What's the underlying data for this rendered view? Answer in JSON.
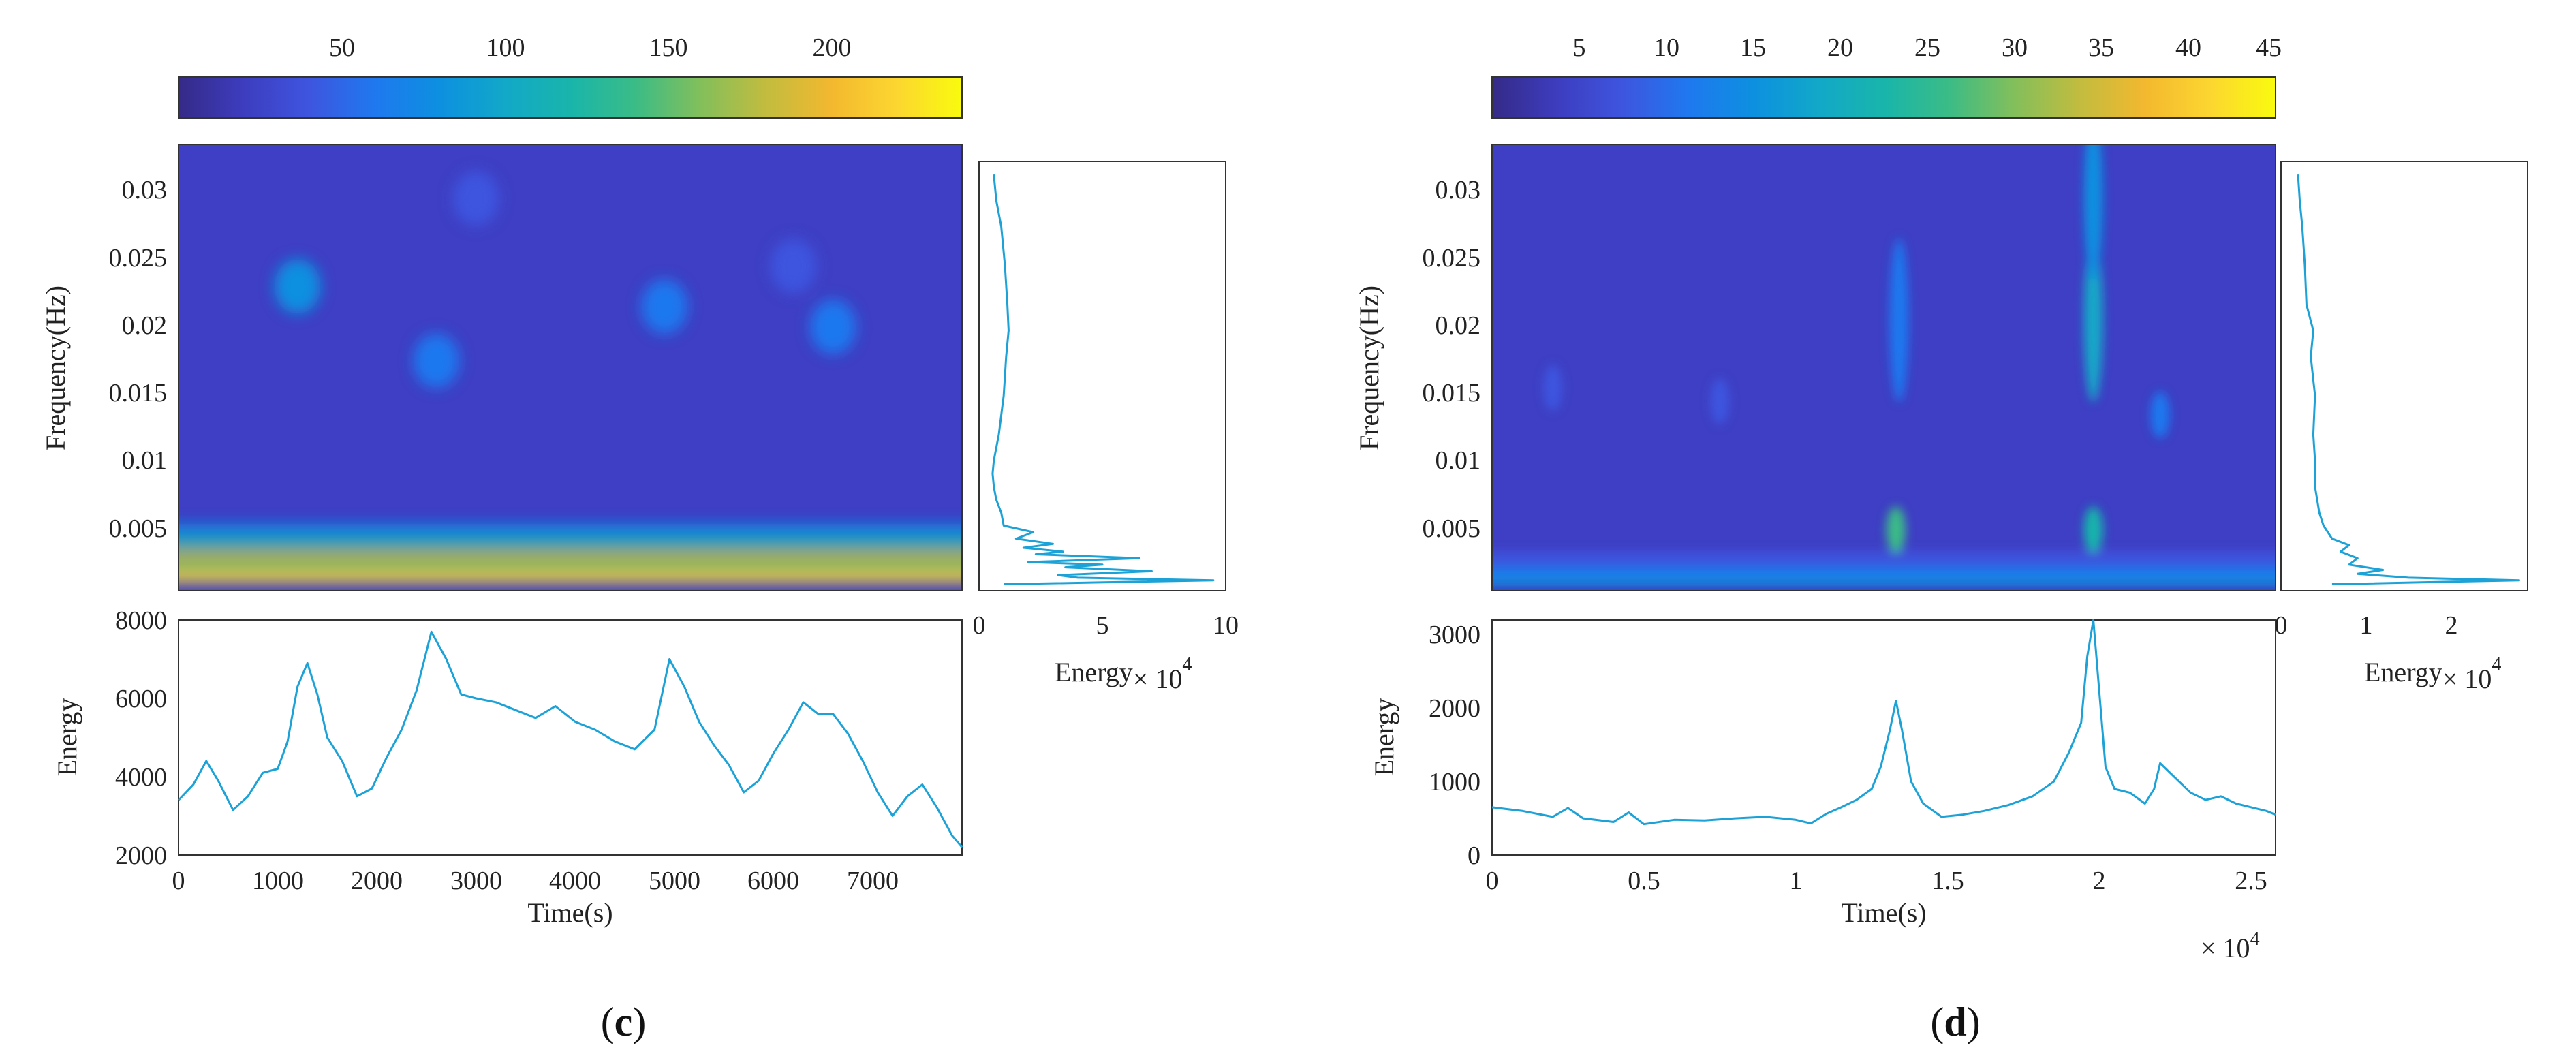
{
  "colors": {
    "parula": [
      "#352a87",
      "#3d3dbf",
      "#3e55df",
      "#1f78ef",
      "#0d90e0",
      "#12a8c8",
      "#19b5ab",
      "#3bbc86",
      "#83bf5b",
      "#c2bc3f",
      "#f3b82f",
      "#fcd630",
      "#f9fb0e"
    ],
    "trace": "#1ca2d6",
    "background_low": "#3e3fc4"
  },
  "chart_data": [
    {
      "id": "c",
      "type": "heatmap",
      "caption": "(c)",
      "caption_letter": "c",
      "colorbar": {
        "ticks": [
          "50",
          "100",
          "150",
          "200"
        ],
        "tick_values": [
          50,
          100,
          150,
          200
        ],
        "range": [
          0,
          240
        ]
      },
      "heatmap": {
        "ylabel": "Frequency(Hz)",
        "yticks": [
          "0.005",
          "0.01",
          "0.015",
          "0.02",
          "0.025",
          "0.03"
        ],
        "ytick_values": [
          0.005,
          0.01,
          0.015,
          0.02,
          0.025,
          0.03
        ],
        "ylim": [
          0,
          0.033
        ],
        "xlim": [
          0,
          7900
        ],
        "bands": [
          {
            "f": 0.001,
            "v": 220
          },
          {
            "f": 0.0025,
            "v": 180
          },
          {
            "f": 0.0018,
            "v": 150
          },
          {
            "f": 0.0035,
            "v": 110
          },
          {
            "f": 0.0045,
            "v": 80
          }
        ],
        "blobs": [
          {
            "t": 1200,
            "f": 0.0225,
            "v": 80
          },
          {
            "t": 2600,
            "f": 0.017,
            "v": 60
          },
          {
            "t": 4900,
            "f": 0.021,
            "v": 55
          },
          {
            "t": 6600,
            "f": 0.0195,
            "v": 60
          },
          {
            "t": 3000,
            "f": 0.029,
            "v": 45
          },
          {
            "t": 6200,
            "f": 0.024,
            "v": 45
          }
        ]
      },
      "side": {
        "xlabel": "Energy",
        "exponent": "× 10",
        "exponent_power": "4",
        "xticks": [
          "0",
          "5",
          "10"
        ],
        "xtick_values": [
          0,
          5,
          10
        ],
        "xlim": [
          0,
          10
        ],
        "f": [
          0.0005,
          0.0008,
          0.001,
          0.0012,
          0.0015,
          0.0018,
          0.002,
          0.0022,
          0.0025,
          0.0028,
          0.003,
          0.0033,
          0.0036,
          0.004,
          0.0045,
          0.005,
          0.006,
          0.007,
          0.008,
          0.009,
          0.01,
          0.012,
          0.015,
          0.018,
          0.02,
          0.022,
          0.025,
          0.028,
          0.03,
          0.032
        ],
        "e": [
          1.0,
          9.5,
          4.0,
          3.2,
          7.0,
          3.5,
          5.0,
          2.0,
          6.5,
          2.3,
          3.4,
          1.8,
          3.0,
          1.5,
          2.2,
          1.0,
          0.9,
          0.7,
          0.6,
          0.55,
          0.6,
          0.8,
          1.0,
          1.1,
          1.2,
          1.15,
          1.05,
          0.9,
          0.7,
          0.6
        ]
      },
      "line": {
        "ylabel": "Energy",
        "xlabel": "Time(s)",
        "yticks": [
          "2000",
          "4000",
          "6000",
          "8000"
        ],
        "ytick_values": [
          2000,
          4000,
          6000,
          8000
        ],
        "ylim": [
          2000,
          8000
        ],
        "xticks": [
          "0",
          "1000",
          "2000",
          "3000",
          "4000",
          "5000",
          "6000",
          "7000"
        ],
        "xtick_values": [
          0,
          1000,
          2000,
          3000,
          4000,
          5000,
          6000,
          7000
        ],
        "xlim": [
          0,
          7900
        ],
        "x": [
          0,
          150,
          280,
          400,
          550,
          700,
          850,
          1000,
          1100,
          1200,
          1300,
          1400,
          1500,
          1650,
          1800,
          1950,
          2100,
          2250,
          2400,
          2550,
          2700,
          2850,
          3000,
          3200,
          3400,
          3600,
          3800,
          4000,
          4200,
          4400,
          4600,
          4800,
          4950,
          5100,
          5250,
          5400,
          5550,
          5700,
          5850,
          6000,
          6150,
          6300,
          6450,
          6600,
          6750,
          6900,
          7050,
          7200,
          7350,
          7500,
          7650,
          7800,
          7900
        ],
        "y": [
          3400,
          3800,
          4400,
          3900,
          3150,
          3500,
          4100,
          4200,
          4900,
          6300,
          6900,
          6100,
          5000,
          4400,
          3500,
          3700,
          4500,
          5200,
          6200,
          7700,
          7000,
          6100,
          6000,
          5900,
          5700,
          5500,
          5800,
          5400,
          5200,
          4900,
          4700,
          5200,
          7000,
          6300,
          5400,
          4800,
          4300,
          3600,
          3900,
          4600,
          5200,
          5900,
          5600,
          5600,
          5100,
          4400,
          3600,
          3000,
          3500,
          3800,
          3200,
          2500,
          2200
        ]
      }
    },
    {
      "id": "d",
      "type": "heatmap",
      "caption": "(d)",
      "caption_letter": "d",
      "colorbar": {
        "ticks": [
          "5",
          "10",
          "15",
          "20",
          "25",
          "30",
          "35",
          "40",
          "45"
        ],
        "tick_values": [
          5,
          10,
          15,
          20,
          25,
          30,
          35,
          40,
          45
        ],
        "range": [
          0,
          45
        ]
      },
      "heatmap": {
        "ylabel": "Frequency(Hz)",
        "yticks": [
          "0.005",
          "0.01",
          "0.015",
          "0.02",
          "0.025",
          "0.03"
        ],
        "ytick_values": [
          0.005,
          0.01,
          0.015,
          0.02,
          0.025,
          0.03
        ],
        "ylim": [
          0,
          0.033
        ],
        "xlim": [
          0,
          25800
        ],
        "bands": [
          {
            "f": 0.0008,
            "v": 14
          },
          {
            "f": 0.0015,
            "v": 10
          },
          {
            "f": 0.0025,
            "v": 8
          }
        ],
        "blobs": [
          {
            "t": 13300,
            "f": 0.0045,
            "v": 25
          },
          {
            "t": 19800,
            "f": 0.0045,
            "v": 22
          },
          {
            "t": 13400,
            "f": 0.02,
            "v": 12
          },
          {
            "t": 19800,
            "f": 0.02,
            "v": 18
          },
          {
            "t": 19800,
            "f": 0.029,
            "v": 14
          },
          {
            "t": 22000,
            "f": 0.013,
            "v": 10
          },
          {
            "t": 2000,
            "f": 0.015,
            "v": 8
          },
          {
            "t": 7500,
            "f": 0.014,
            "v": 8
          }
        ]
      },
      "side": {
        "xlabel": "Energy",
        "exponent": "× 10",
        "exponent_power": "4",
        "xticks": [
          "0",
          "1",
          "2"
        ],
        "xtick_values": [
          0,
          1,
          2
        ],
        "xlim": [
          0,
          2.9
        ],
        "f": [
          0.0005,
          0.0008,
          0.001,
          0.0013,
          0.0016,
          0.002,
          0.0025,
          0.003,
          0.0035,
          0.004,
          0.005,
          0.006,
          0.008,
          0.01,
          0.012,
          0.015,
          0.018,
          0.02,
          0.022,
          0.025,
          0.028,
          0.03,
          0.032
        ],
        "e": [
          0.6,
          2.8,
          1.5,
          0.9,
          1.2,
          0.8,
          0.9,
          0.7,
          0.8,
          0.6,
          0.5,
          0.45,
          0.4,
          0.4,
          0.38,
          0.4,
          0.35,
          0.38,
          0.3,
          0.28,
          0.25,
          0.22,
          0.2
        ]
      },
      "line": {
        "ylabel": "Energy",
        "xlabel": "Time(s)",
        "exponent": "× 10",
        "exponent_power": "4",
        "yticks": [
          "0",
          "1000",
          "2000",
          "3000"
        ],
        "ytick_values": [
          0,
          1000,
          2000,
          3000
        ],
        "ylim": [
          0,
          3200
        ],
        "xticks": [
          "0",
          "0.5",
          "1",
          "1.5",
          "2",
          "2.5"
        ],
        "xtick_values": [
          0,
          0.5,
          1,
          1.5,
          2,
          2.5
        ],
        "xlim": [
          0,
          2.58
        ],
        "x": [
          0,
          0.1,
          0.2,
          0.25,
          0.3,
          0.4,
          0.45,
          0.5,
          0.6,
          0.7,
          0.8,
          0.9,
          1.0,
          1.05,
          1.1,
          1.15,
          1.2,
          1.25,
          1.28,
          1.31,
          1.33,
          1.35,
          1.38,
          1.42,
          1.48,
          1.55,
          1.62,
          1.7,
          1.78,
          1.85,
          1.9,
          1.94,
          1.96,
          1.98,
          2.0,
          2.02,
          2.05,
          2.1,
          2.15,
          2.18,
          2.2,
          2.25,
          2.3,
          2.35,
          2.4,
          2.45,
          2.5,
          2.55,
          2.58
        ],
        "y": [
          650,
          600,
          520,
          640,
          500,
          450,
          580,
          420,
          480,
          470,
          500,
          520,
          480,
          430,
          560,
          650,
          750,
          900,
          1200,
          1700,
          2100,
          1700,
          1000,
          700,
          520,
          550,
          600,
          680,
          800,
          1000,
          1400,
          1800,
          2700,
          3200,
          2200,
          1200,
          900,
          850,
          700,
          900,
          1250,
          1050,
          850,
          750,
          800,
          700,
          650,
          600,
          550
        ]
      }
    }
  ]
}
